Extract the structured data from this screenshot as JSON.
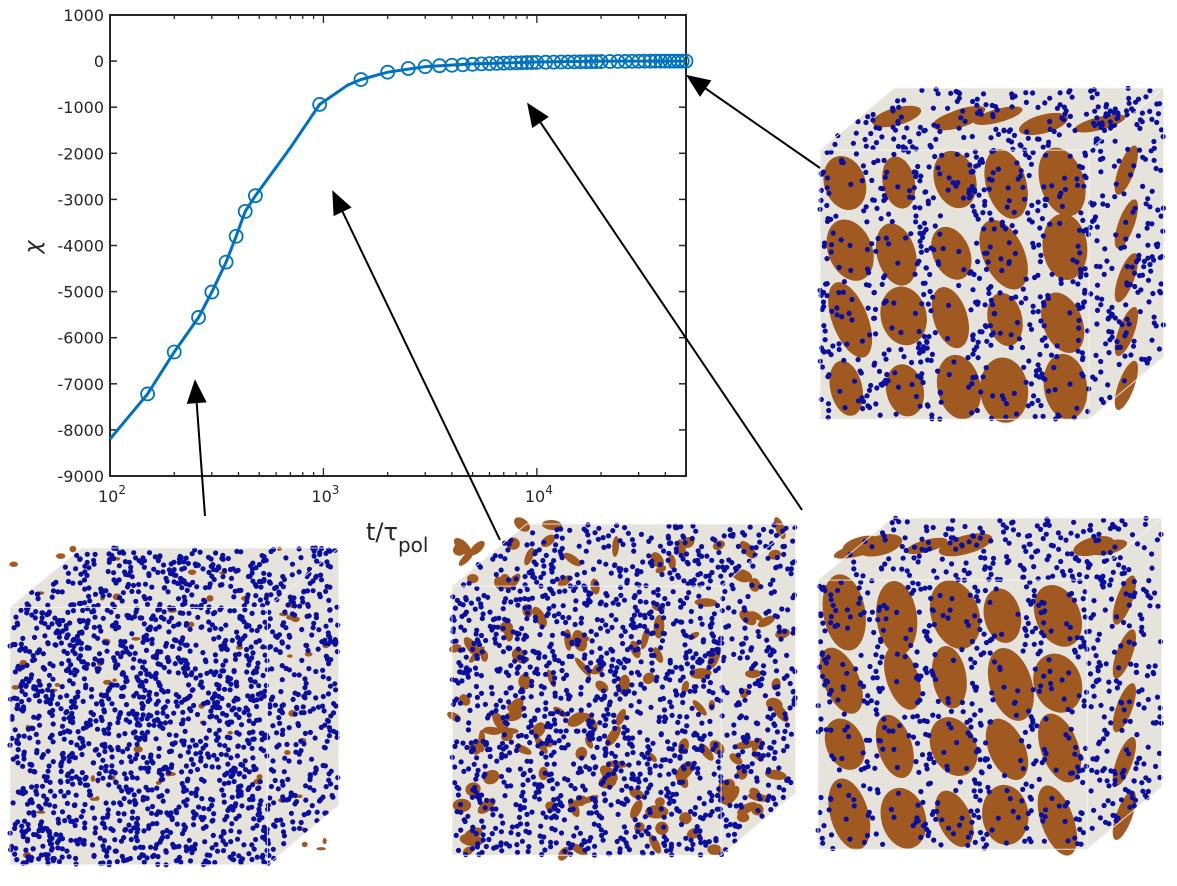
{
  "chart_data": {
    "type": "line",
    "title": "",
    "xlabel": "t/τ",
    "xlabel_subscript": "pol",
    "ylabel": "χ",
    "x_scale": "log",
    "xlim": [
      100,
      50000
    ],
    "ylim": [
      -9000,
      1000
    ],
    "x_tick_labels": [
      {
        "value": 100,
        "base": "10",
        "exp": "2"
      },
      {
        "value": 1000,
        "base": "10",
        "exp": "3"
      },
      {
        "value": 10000,
        "base": "10",
        "exp": "4"
      }
    ],
    "y_ticks": [
      1000,
      0,
      -1000,
      -2000,
      -3000,
      -4000,
      -5000,
      -6000,
      -7000,
      -8000,
      -9000
    ],
    "y_tick_labels": [
      "1000",
      "0",
      "-1000",
      "-2000",
      "-3000",
      "-4000",
      "-5000",
      "-6000",
      "-7000",
      "-8000",
      "-9000"
    ],
    "grid": false,
    "box": true,
    "series": [
      {
        "color": "#0072bd",
        "marker": "open-circle",
        "curve": [
          [
            100,
            -8200
          ],
          [
            150,
            -7220
          ],
          [
            200,
            -6310
          ],
          [
            260,
            -5560
          ],
          [
            300,
            -5010
          ],
          [
            350,
            -4360
          ],
          [
            390,
            -3800
          ],
          [
            430,
            -3260
          ],
          [
            480,
            -2920
          ],
          [
            700,
            -1880
          ],
          [
            960,
            -940
          ],
          [
            1300,
            -520
          ],
          [
            1500,
            -400
          ],
          [
            2000,
            -240
          ],
          [
            3000,
            -120
          ],
          [
            5000,
            -60
          ],
          [
            10000,
            -20
          ],
          [
            20000,
            0
          ],
          [
            50000,
            0
          ]
        ],
        "markers": [
          [
            150,
            -7220
          ],
          [
            200,
            -6310
          ],
          [
            260,
            -5560
          ],
          [
            300,
            -5010
          ],
          [
            350,
            -4360
          ],
          [
            390,
            -3800
          ],
          [
            430,
            -3260
          ],
          [
            480,
            -2920
          ],
          [
            960,
            -940
          ],
          [
            1500,
            -400
          ],
          [
            2000,
            -240
          ],
          [
            2500,
            -160
          ],
          [
            3000,
            -120
          ],
          [
            3500,
            -100
          ],
          [
            4000,
            -90
          ],
          [
            4500,
            -80
          ],
          [
            5000,
            -70
          ],
          [
            5500,
            -60
          ],
          [
            6000,
            -55
          ],
          [
            6500,
            -50
          ],
          [
            7000,
            -45
          ],
          [
            7500,
            -40
          ],
          [
            8000,
            -38
          ],
          [
            8500,
            -35
          ],
          [
            9000,
            -32
          ],
          [
            9500,
            -30
          ],
          [
            10000,
            -28
          ],
          [
            11000,
            -24
          ],
          [
            12000,
            -22
          ],
          [
            13000,
            -20
          ],
          [
            14000,
            -18
          ],
          [
            15000,
            -16
          ],
          [
            16000,
            -15
          ],
          [
            17000,
            -14
          ],
          [
            18000,
            -12
          ],
          [
            19000,
            -11
          ],
          [
            20000,
            -10
          ],
          [
            22000,
            -8
          ],
          [
            24000,
            -6
          ],
          [
            26000,
            -5
          ],
          [
            28000,
            -4
          ],
          [
            30000,
            -3
          ],
          [
            32000,
            -2
          ],
          [
            34000,
            -2
          ],
          [
            36000,
            -1
          ],
          [
            38000,
            -1
          ],
          [
            40000,
            0
          ],
          [
            42000,
            0
          ],
          [
            44000,
            0
          ],
          [
            46000,
            0
          ],
          [
            48000,
            0
          ],
          [
            50000,
            0
          ]
        ]
      }
    ],
    "annotations": [
      {
        "type": "arrow",
        "points_to": [
          250,
          -6900
        ]
      },
      {
        "type": "arrow",
        "points_to": [
          1100,
          -2800
        ]
      },
      {
        "type": "arrow",
        "points_to": [
          9000,
          -900
        ]
      },
      {
        "type": "arrow",
        "points_to": [
          50000,
          -300
        ]
      }
    ]
  },
  "insets": [
    {
      "name": "cube-early",
      "description_icon": "morphology-cube-icon"
    },
    {
      "name": "cube-mid",
      "description_icon": "morphology-cube-icon"
    },
    {
      "name": "cube-late",
      "description_icon": "morphology-cube-icon"
    },
    {
      "name": "cube-final",
      "description_icon": "morphology-cube-icon"
    }
  ],
  "colors": {
    "line": "#0072bd",
    "particles": "#0a0f9c",
    "domains": "#9c5218",
    "surface": "#e6e3dc"
  }
}
